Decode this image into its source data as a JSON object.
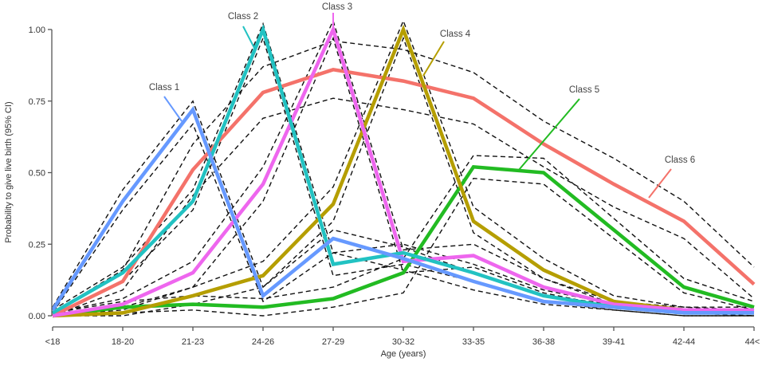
{
  "chart_data": {
    "type": "line",
    "title": "",
    "xlabel": "Age (years)",
    "ylabel": "Probability to give live birth (95% CI)",
    "categories": [
      "<18",
      "18-20",
      "21-23",
      "24-26",
      "27-29",
      "30-32",
      "33-35",
      "36-38",
      "39-41",
      "42-44",
      "44<"
    ],
    "yticks": [
      "0.00",
      "0.25",
      "0.50",
      "0.75",
      "1.00"
    ],
    "ylim": [
      0,
      1
    ],
    "grid": false,
    "legend": "inline labels",
    "series": [
      {
        "name": "Class 1",
        "color": "#6699ff",
        "values": [
          0.02,
          0.4,
          0.72,
          0.07,
          0.27,
          0.2,
          0.12,
          0.05,
          0.03,
          0.01,
          0.01
        ],
        "ci_lower": [
          0.01,
          0.37,
          0.67,
          0.05,
          0.22,
          0.16,
          0.09,
          0.04,
          0.02,
          0.0,
          0.0
        ],
        "ci_upper": [
          0.03,
          0.44,
          0.75,
          0.1,
          0.3,
          0.24,
          0.15,
          0.07,
          0.04,
          0.02,
          0.02
        ]
      },
      {
        "name": "Class 2",
        "color": "#22c2c2",
        "values": [
          0.01,
          0.15,
          0.4,
          1.0,
          0.18,
          0.22,
          0.15,
          0.07,
          0.03,
          0.01,
          0.01
        ],
        "ci_lower": [
          0.0,
          0.12,
          0.37,
          0.97,
          0.14,
          0.18,
          0.12,
          0.05,
          0.02,
          0.0,
          0.0
        ],
        "ci_upper": [
          0.02,
          0.17,
          0.44,
          1.02,
          0.22,
          0.25,
          0.18,
          0.09,
          0.04,
          0.02,
          0.02
        ]
      },
      {
        "name": "Class 3",
        "color": "#ee66ee",
        "values": [
          0.0,
          0.04,
          0.15,
          0.46,
          1.0,
          0.19,
          0.21,
          0.1,
          0.04,
          0.02,
          0.02
        ],
        "ci_lower": [
          0.0,
          0.02,
          0.1,
          0.4,
          0.97,
          0.15,
          0.17,
          0.08,
          0.03,
          0.01,
          0.01
        ],
        "ci_upper": [
          0.01,
          0.06,
          0.19,
          0.52,
          1.03,
          0.23,
          0.25,
          0.13,
          0.05,
          0.03,
          0.03
        ]
      },
      {
        "name": "Class 4",
        "color": "#b59e00",
        "values": [
          0.0,
          0.01,
          0.07,
          0.14,
          0.39,
          1.0,
          0.33,
          0.16,
          0.05,
          0.02,
          0.01
        ],
        "ci_lower": [
          0.0,
          0.0,
          0.04,
          0.1,
          0.33,
          0.97,
          0.29,
          0.13,
          0.04,
          0.01,
          0.0
        ],
        "ci_upper": [
          0.01,
          0.03,
          0.1,
          0.19,
          0.45,
          1.03,
          0.38,
          0.2,
          0.07,
          0.03,
          0.02
        ]
      },
      {
        "name": "Class 5",
        "color": "#22bb22",
        "values": [
          0.0,
          0.03,
          0.04,
          0.03,
          0.06,
          0.15,
          0.52,
          0.5,
          0.3,
          0.1,
          0.03
        ],
        "ci_lower": [
          0.0,
          0.01,
          0.02,
          0.0,
          0.03,
          0.08,
          0.48,
          0.46,
          0.27,
          0.08,
          0.02
        ],
        "ci_upper": [
          0.01,
          0.05,
          0.07,
          0.06,
          0.1,
          0.2,
          0.56,
          0.55,
          0.34,
          0.13,
          0.05
        ]
      },
      {
        "name": "Class 6",
        "color": "#f4726a",
        "values": [
          0.0,
          0.12,
          0.51,
          0.78,
          0.86,
          0.82,
          0.76,
          0.6,
          0.46,
          0.33,
          0.11
        ],
        "ci_lower": [
          0.0,
          0.09,
          0.42,
          0.69,
          0.76,
          0.72,
          0.67,
          0.52,
          0.38,
          0.27,
          0.06
        ],
        "ci_upper": [
          0.01,
          0.16,
          0.6,
          0.87,
          0.96,
          0.93,
          0.85,
          0.68,
          0.55,
          0.4,
          0.17
        ]
      }
    ]
  }
}
